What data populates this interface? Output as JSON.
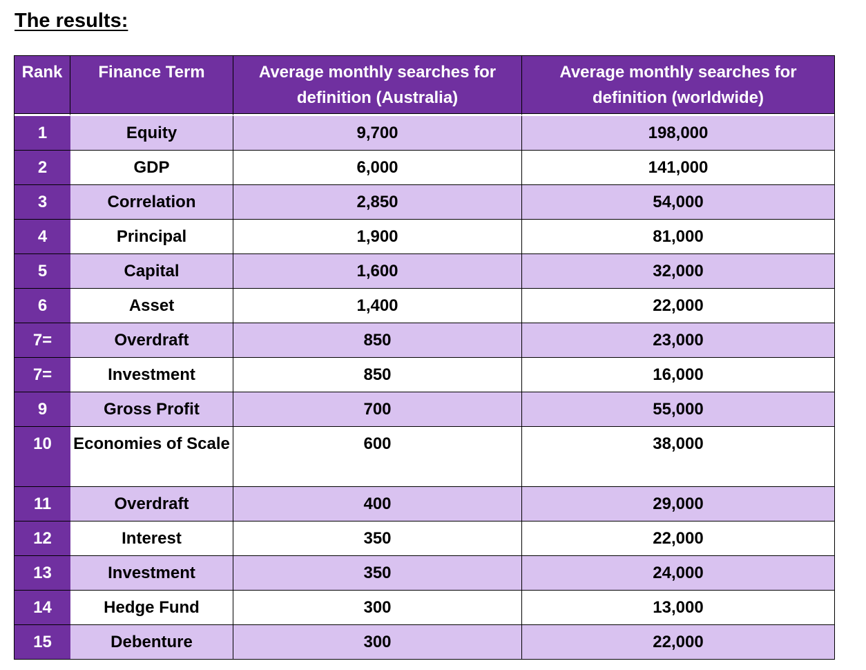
{
  "heading": "The results:",
  "table": {
    "headers": {
      "rank": "Rank",
      "term": "Finance Term",
      "australia": "Average monthly searches for definition (Australia)",
      "worldwide": "Average monthly searches for definition (worldwide)"
    },
    "rows": [
      {
        "rank": "1",
        "term": "Equity",
        "australia": "9,700",
        "worldwide": "198,000"
      },
      {
        "rank": "2",
        "term": "GDP",
        "australia": "6,000",
        "worldwide": "141,000"
      },
      {
        "rank": "3",
        "term": "Correlation",
        "australia": "2,850",
        "worldwide": "54,000"
      },
      {
        "rank": "4",
        "term": "Principal",
        "australia": "1,900",
        "worldwide": "81,000"
      },
      {
        "rank": "5",
        "term": "Capital",
        "australia": "1,600",
        "worldwide": "32,000"
      },
      {
        "rank": "6",
        "term": "Asset",
        "australia": "1,400",
        "worldwide": "22,000"
      },
      {
        "rank": "7=",
        "term": "Overdraft",
        "australia": "850",
        "worldwide": "23,000"
      },
      {
        "rank": "7=",
        "term": "Investment",
        "australia": "850",
        "worldwide": "16,000"
      },
      {
        "rank": "9",
        "term": "Gross Profit",
        "australia": "700",
        "worldwide": "55,000"
      },
      {
        "rank": "10",
        "term": "Economies of Scale",
        "australia": "600",
        "worldwide": "38,000"
      },
      {
        "rank": "11",
        "term": "Overdraft",
        "australia": "400",
        "worldwide": "29,000"
      },
      {
        "rank": "12",
        "term": "Interest",
        "australia": "350",
        "worldwide": "22,000"
      },
      {
        "rank": "13",
        "term": "Investment",
        "australia": "350",
        "worldwide": "24,000"
      },
      {
        "rank": "14",
        "term": "Hedge Fund",
        "australia": "300",
        "worldwide": "13,000"
      },
      {
        "rank": "15",
        "term": "Debenture",
        "australia": "300",
        "worldwide": "22,000"
      }
    ]
  },
  "colors": {
    "header_purple": "#7030a0",
    "row_lavender": "#d9c2f0",
    "row_white": "#ffffff"
  }
}
